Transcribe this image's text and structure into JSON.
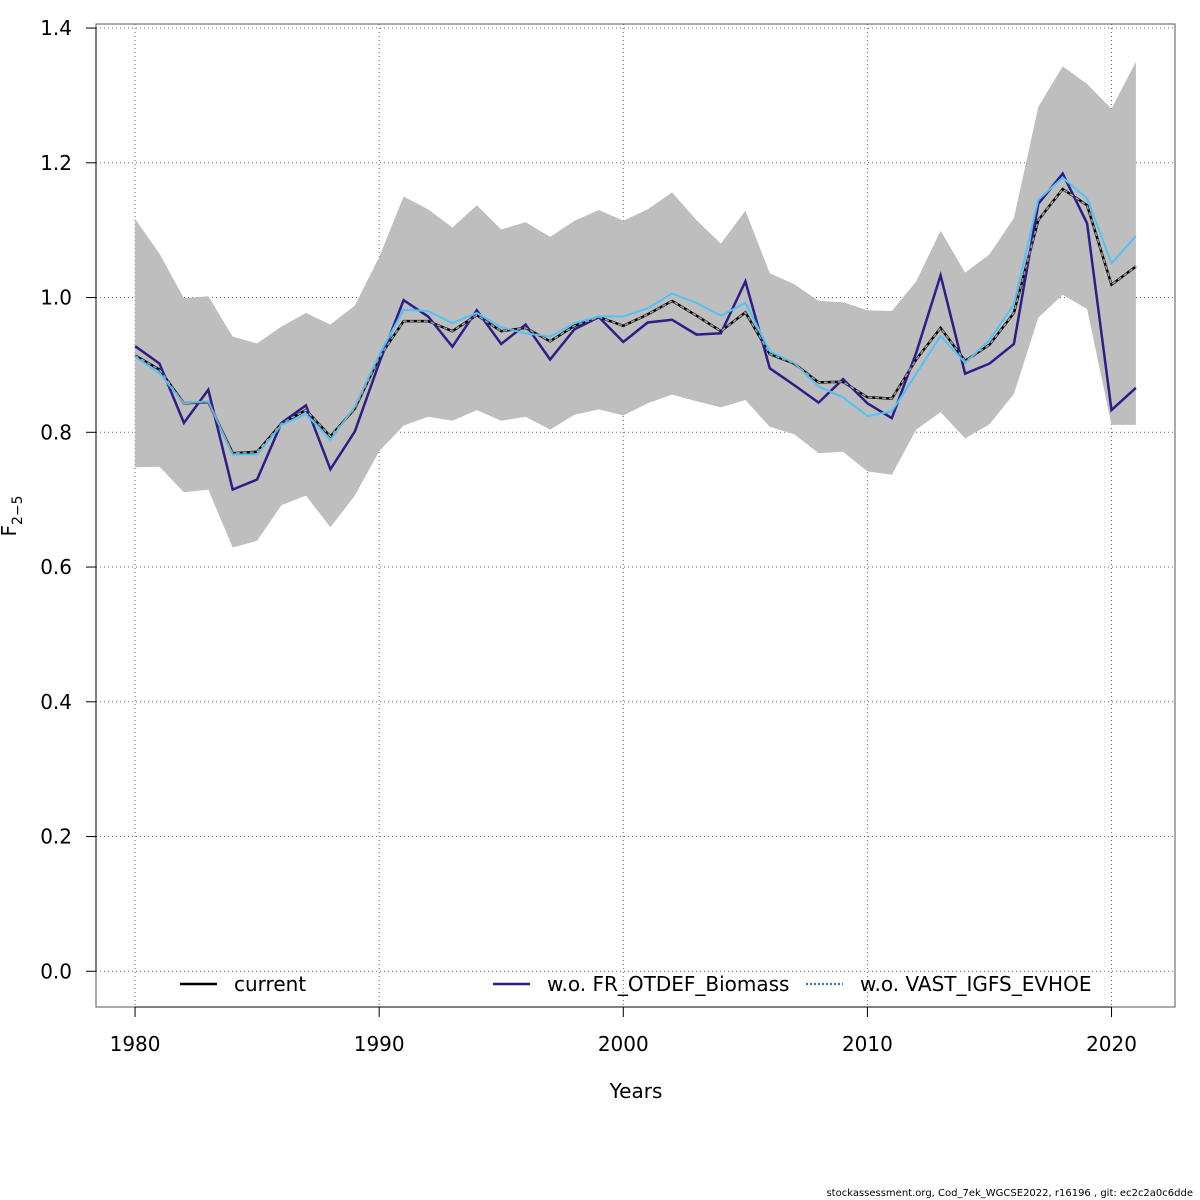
{
  "chart_data": {
    "type": "line",
    "xlabel": "Years",
    "ylabel_main": "F",
    "ylabel_sub": "2−5",
    "xlim": [
      1978.4,
      2022.6
    ],
    "ylim": [
      -0.053,
      1.406
    ],
    "xticks": [
      1980,
      1990,
      2000,
      2010,
      2020
    ],
    "xtick_labels": [
      "1980",
      "1990",
      "2000",
      "2010",
      "2020"
    ],
    "yticks": [
      0.0,
      0.2,
      0.4,
      0.6,
      0.8,
      1.0,
      1.2,
      1.4
    ],
    "ytick_labels": [
      "0.0",
      "0.2",
      "0.4",
      "0.6",
      "0.8",
      "1.0",
      "1.2",
      "1.4"
    ],
    "grid": true,
    "legend_position": "bottom",
    "x": [
      1980,
      1981,
      1982,
      1983,
      1984,
      1985,
      1986,
      1987,
      1988,
      1989,
      1990,
      1991,
      1992,
      1993,
      1994,
      1995,
      1996,
      1997,
      1998,
      1999,
      2000,
      2001,
      2002,
      2003,
      2004,
      2005,
      2006,
      2007,
      2008,
      2009,
      2010,
      2011,
      2012,
      2013,
      2014,
      2015,
      2016,
      2017,
      2018,
      2019,
      2020,
      2021
    ],
    "confidence_band": {
      "upper": [
        1.117,
        1.065,
        0.999,
        1.002,
        0.942,
        0.932,
        0.957,
        0.977,
        0.96,
        0.988,
        1.06,
        1.15,
        1.131,
        1.104,
        1.137,
        1.101,
        1.112,
        1.09,
        1.114,
        1.13,
        1.114,
        1.131,
        1.156,
        1.115,
        1.08,
        1.129,
        1.036,
        1.02,
        0.995,
        0.993,
        0.981,
        0.98,
        1.024,
        1.099,
        1.037,
        1.064,
        1.118,
        1.283,
        1.343,
        1.317,
        1.28,
        1.35
      ],
      "lower": [
        0.748,
        0.749,
        0.711,
        0.715,
        0.629,
        0.639,
        0.692,
        0.706,
        0.659,
        0.706,
        0.772,
        0.81,
        0.823,
        0.817,
        0.833,
        0.817,
        0.823,
        0.804,
        0.826,
        0.834,
        0.825,
        0.843,
        0.856,
        0.846,
        0.837,
        0.848,
        0.808,
        0.797,
        0.769,
        0.771,
        0.742,
        0.737,
        0.804,
        0.83,
        0.791,
        0.812,
        0.857,
        0.97,
        1.004,
        0.983,
        0.811,
        0.811
      ],
      "color": "#bebebe"
    },
    "series": [
      {
        "name": "current",
        "color": "#000000",
        "style": "solid",
        "values": [
          0.914,
          0.893,
          0.843,
          0.845,
          0.769,
          0.771,
          0.813,
          0.833,
          0.794,
          0.835,
          0.911,
          0.965,
          0.965,
          0.95,
          0.974,
          0.95,
          0.955,
          0.935,
          0.958,
          0.971,
          0.958,
          0.975,
          0.995,
          0.973,
          0.95,
          0.978,
          0.916,
          0.902,
          0.874,
          0.875,
          0.852,
          0.85,
          0.908,
          0.955,
          0.906,
          0.93,
          0.977,
          1.115,
          1.161,
          1.137,
          1.019,
          1.046
        ]
      },
      {
        "name": "w.o. FR_OTDEF_Biomass",
        "color": "#2d1e87",
        "style": "solid",
        "values": [
          0.928,
          0.902,
          0.814,
          0.863,
          0.715,
          0.73,
          0.814,
          0.84,
          0.745,
          0.801,
          0.903,
          0.996,
          0.972,
          0.927,
          0.981,
          0.931,
          0.96,
          0.908,
          0.953,
          0.971,
          0.934,
          0.963,
          0.967,
          0.945,
          0.947,
          1.024,
          0.895,
          0.87,
          0.844,
          0.879,
          0.843,
          0.821,
          0.918,
          1.033,
          0.887,
          0.902,
          0.931,
          1.139,
          1.184,
          1.11,
          0.833,
          0.866
        ]
      },
      {
        "name": "w.o. VAST_IGFS_EVHOE",
        "color": "#4fc3f7",
        "style": "dotted",
        "values": [
          0.912,
          0.888,
          0.843,
          0.846,
          0.767,
          0.767,
          0.811,
          0.827,
          0.789,
          0.838,
          0.915,
          0.982,
          0.98,
          0.962,
          0.977,
          0.956,
          0.947,
          0.942,
          0.962,
          0.972,
          0.972,
          0.984,
          1.006,
          0.992,
          0.973,
          0.992,
          0.92,
          0.903,
          0.868,
          0.852,
          0.824,
          0.831,
          0.887,
          0.943,
          0.903,
          0.937,
          0.99,
          1.145,
          1.178,
          1.147,
          1.051,
          1.091
        ]
      }
    ]
  },
  "footer": "stockassessment.org, Cod_7ek_WGCSE2022, r16196 , git: ec2c2a0c6dde"
}
